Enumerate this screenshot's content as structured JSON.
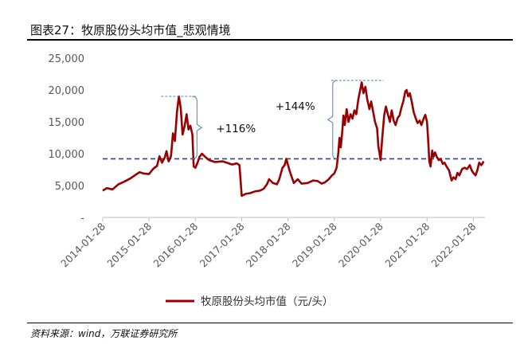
{
  "title": "图表27：牧原股份头均市值_悲观情境",
  "source": "资料来源：wind，万联证券研究所",
  "chart_data": {
    "type": "line",
    "title": "",
    "xlabel": "",
    "ylabel": "",
    "ylim": [
      0,
      25000
    ],
    "yticks": [
      "-",
      "5,000",
      "10,000",
      "15,000",
      "20,000",
      "25,000"
    ],
    "ytick_values": [
      0,
      5000,
      10000,
      15000,
      20000,
      25000
    ],
    "xticks": [
      "2014-01-28",
      "2015-01-28",
      "2016-01-28",
      "2017-01-28",
      "2018-01-28",
      "2019-01-28",
      "2020-01-28",
      "2021-01-28",
      "2022-01-28"
    ],
    "xlim": [
      "2014-01-28",
      "2022-04-30"
    ],
    "grid": false,
    "legend_position": "bottom",
    "series": [
      {
        "name": "牧原股份头均市值（元/头）",
        "color": "#9b0000",
        "points": [
          [
            "2014-01-28",
            4200
          ],
          [
            "2014-03-01",
            4600
          ],
          [
            "2014-04-15",
            4400
          ],
          [
            "2014-06-01",
            5200
          ],
          [
            "2014-07-15",
            5600
          ],
          [
            "2014-09-01",
            6100
          ],
          [
            "2014-10-15",
            6700
          ],
          [
            "2014-11-15",
            7100
          ],
          [
            "2014-12-15",
            6900
          ],
          [
            "2015-01-28",
            6800
          ],
          [
            "2015-03-01",
            7600
          ],
          [
            "2015-04-01",
            8100
          ],
          [
            "2015-04-20",
            9600
          ],
          [
            "2015-05-10",
            8600
          ],
          [
            "2015-06-01",
            9400
          ],
          [
            "2015-06-15",
            10400
          ],
          [
            "2015-07-01",
            8800
          ],
          [
            "2015-07-20",
            9600
          ],
          [
            "2015-08-05",
            13200
          ],
          [
            "2015-08-20",
            12000
          ],
          [
            "2015-09-05",
            16500
          ],
          [
            "2015-09-20",
            19000
          ],
          [
            "2015-10-05",
            17200
          ],
          [
            "2015-10-20",
            13000
          ],
          [
            "2015-11-05",
            14400
          ],
          [
            "2015-11-20",
            16200
          ],
          [
            "2015-12-05",
            13800
          ],
          [
            "2015-12-20",
            14400
          ],
          [
            "2016-01-05",
            13000
          ],
          [
            "2016-01-15",
            8000
          ],
          [
            "2016-01-28",
            7800
          ],
          [
            "2016-02-15",
            8600
          ],
          [
            "2016-03-01",
            9500
          ],
          [
            "2016-03-20",
            10000
          ],
          [
            "2016-04-15",
            9500
          ],
          [
            "2016-05-15",
            9000
          ],
          [
            "2016-07-01",
            8700
          ],
          [
            "2016-09-01",
            8800
          ],
          [
            "2016-10-15",
            8500
          ],
          [
            "2016-11-15",
            8300
          ],
          [
            "2016-12-20",
            8500
          ],
          [
            "2017-01-10",
            8200
          ],
          [
            "2017-01-28",
            3400
          ],
          [
            "2017-03-01",
            3700
          ],
          [
            "2017-04-01",
            3800
          ],
          [
            "2017-05-15",
            4100
          ],
          [
            "2017-06-20",
            4200
          ],
          [
            "2017-07-20",
            4500
          ],
          [
            "2017-08-15",
            5200
          ],
          [
            "2017-09-01",
            6000
          ],
          [
            "2017-10-01",
            5400
          ],
          [
            "2017-11-01",
            5200
          ],
          [
            "2017-11-20",
            6000
          ],
          [
            "2017-12-15",
            7800
          ],
          [
            "2018-01-01",
            8200
          ],
          [
            "2018-01-15",
            9200
          ],
          [
            "2018-01-28",
            8200
          ],
          [
            "2018-02-15",
            7000
          ],
          [
            "2018-03-15",
            5400
          ],
          [
            "2018-04-15",
            6000
          ],
          [
            "2018-05-15",
            5300
          ],
          [
            "2018-07-01",
            5400
          ],
          [
            "2018-08-15",
            5800
          ],
          [
            "2018-09-20",
            5700
          ],
          [
            "2018-10-20",
            5300
          ],
          [
            "2018-11-15",
            5500
          ],
          [
            "2018-12-15",
            6000
          ],
          [
            "2019-01-10",
            6600
          ],
          [
            "2019-01-28",
            6900
          ],
          [
            "2019-02-15",
            7800
          ],
          [
            "2019-03-01",
            10200
          ],
          [
            "2019-03-10",
            12500
          ],
          [
            "2019-03-20",
            11000
          ],
          [
            "2019-04-01",
            13500
          ],
          [
            "2019-04-10",
            16000
          ],
          [
            "2019-04-20",
            14500
          ],
          [
            "2019-05-05",
            17000
          ],
          [
            "2019-05-20",
            15000
          ],
          [
            "2019-06-05",
            16200
          ],
          [
            "2019-06-20",
            15500
          ],
          [
            "2019-07-05",
            16800
          ],
          [
            "2019-07-20",
            16200
          ],
          [
            "2019-08-05",
            18500
          ],
          [
            "2019-08-20",
            20000
          ],
          [
            "2019-09-01",
            21200
          ],
          [
            "2019-09-15",
            19500
          ],
          [
            "2019-09-30",
            20500
          ],
          [
            "2019-10-15",
            18500
          ],
          [
            "2019-11-01",
            17000
          ],
          [
            "2019-11-15",
            18200
          ],
          [
            "2019-12-01",
            16500
          ],
          [
            "2019-12-15",
            15000
          ],
          [
            "2019-12-31",
            14000
          ],
          [
            "2020-01-10",
            11200
          ],
          [
            "2020-01-28",
            9000
          ],
          [
            "2020-02-10",
            12500
          ],
          [
            "2020-02-25",
            16000
          ],
          [
            "2020-03-10",
            17400
          ],
          [
            "2020-03-25",
            16200
          ],
          [
            "2020-04-10",
            15000
          ],
          [
            "2020-04-25",
            16800
          ],
          [
            "2020-05-10",
            15200
          ],
          [
            "2020-05-25",
            14500
          ],
          [
            "2020-06-10",
            15600
          ],
          [
            "2020-06-25",
            16000
          ],
          [
            "2020-07-10",
            17200
          ],
          [
            "2020-07-25",
            18200
          ],
          [
            "2020-08-10",
            19800
          ],
          [
            "2020-08-20",
            20000
          ],
          [
            "2020-09-01",
            19000
          ],
          [
            "2020-09-15",
            19500
          ],
          [
            "2020-10-01",
            18000
          ],
          [
            "2020-10-15",
            16500
          ],
          [
            "2020-11-01",
            15500
          ],
          [
            "2020-11-15",
            14800
          ],
          [
            "2020-12-01",
            15200
          ],
          [
            "2020-12-15",
            14500
          ],
          [
            "2021-01-01",
            15500
          ],
          [
            "2021-01-15",
            16100
          ],
          [
            "2021-01-28",
            15000
          ],
          [
            "2021-02-05",
            12500
          ],
          [
            "2021-02-15",
            8800
          ],
          [
            "2021-02-25",
            8000
          ],
          [
            "2021-03-10",
            10500
          ],
          [
            "2021-03-20",
            9500
          ],
          [
            "2021-04-01",
            10200
          ],
          [
            "2021-04-15",
            9500
          ],
          [
            "2021-05-01",
            9000
          ],
          [
            "2021-05-15",
            9200
          ],
          [
            "2021-06-01",
            8400
          ],
          [
            "2021-06-15",
            8600
          ],
          [
            "2021-07-01",
            8000
          ],
          [
            "2021-07-20",
            7400
          ],
          [
            "2021-08-10",
            5800
          ],
          [
            "2021-08-25",
            6300
          ],
          [
            "2021-09-10",
            6000
          ],
          [
            "2021-09-25",
            7000
          ],
          [
            "2021-10-10",
            6600
          ],
          [
            "2021-11-01",
            7600
          ],
          [
            "2021-11-20",
            7800
          ],
          [
            "2021-12-10",
            7600
          ],
          [
            "2022-01-01",
            8200
          ],
          [
            "2022-01-15",
            7400
          ],
          [
            "2022-01-28",
            7000
          ],
          [
            "2022-02-15",
            6600
          ],
          [
            "2022-03-01",
            7400
          ],
          [
            "2022-03-15",
            8600
          ],
          [
            "2022-04-01",
            8200
          ],
          [
            "2022-04-20",
            8800
          ]
        ]
      }
    ],
    "reference_line": {
      "value": 9200,
      "style": "dashed",
      "color": "#2e3f95"
    },
    "annotations": [
      {
        "text": "+116%",
        "date": "2016-02-10",
        "low": 9200,
        "high": 19000
      },
      {
        "text": "+144%",
        "date": "2019-01-28",
        "low": 9200,
        "high": 21500
      }
    ]
  }
}
